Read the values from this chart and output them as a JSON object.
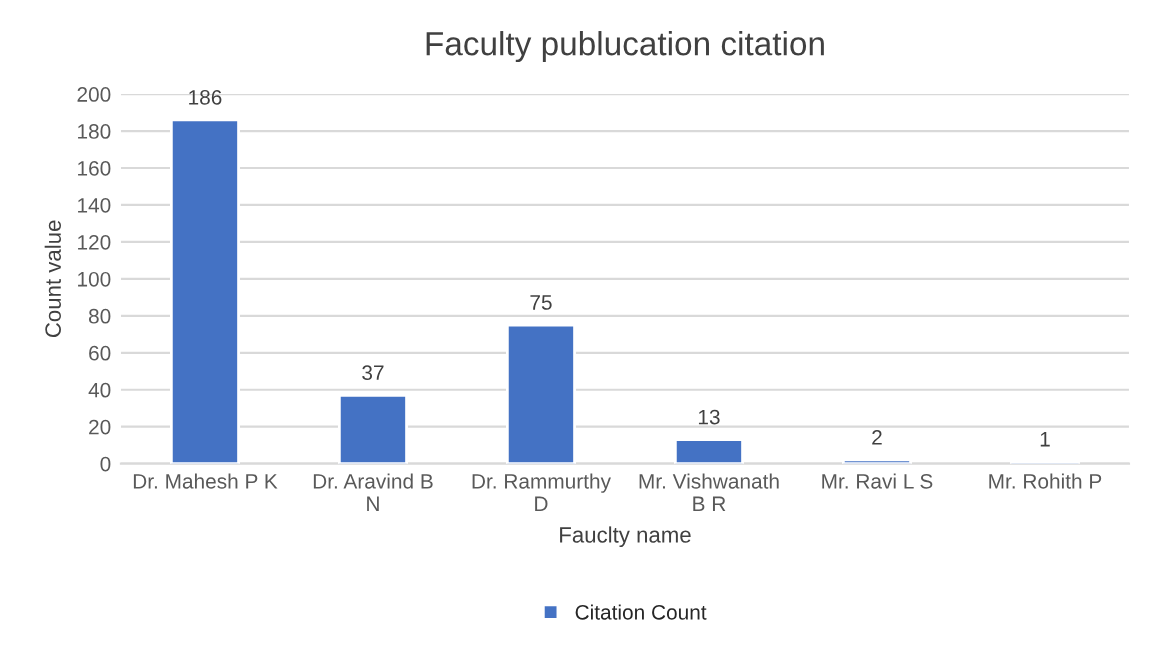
{
  "chart_data": {
    "type": "bar",
    "title": "Faculty publucation citation",
    "xlabel": "Fauclty name",
    "ylabel": "Count value",
    "categories": [
      "Dr. Mahesh P K",
      "Dr. Aravind B N",
      "Dr. Rammurthy D",
      "Mr. Vishwanath B R",
      "Mr. Ravi L S",
      "Mr. Rohith P"
    ],
    "series": [
      {
        "name": "Citation Count",
        "color": "#4472c4",
        "values": [
          186,
          37,
          75,
          13,
          2,
          1
        ]
      }
    ],
    "ylim": [
      0,
      200
    ],
    "yticks": [
      0,
      20,
      40,
      60,
      80,
      100,
      120,
      140,
      160,
      180,
      200
    ],
    "grid": "y",
    "legend": "bottom",
    "data_labels": true
  }
}
